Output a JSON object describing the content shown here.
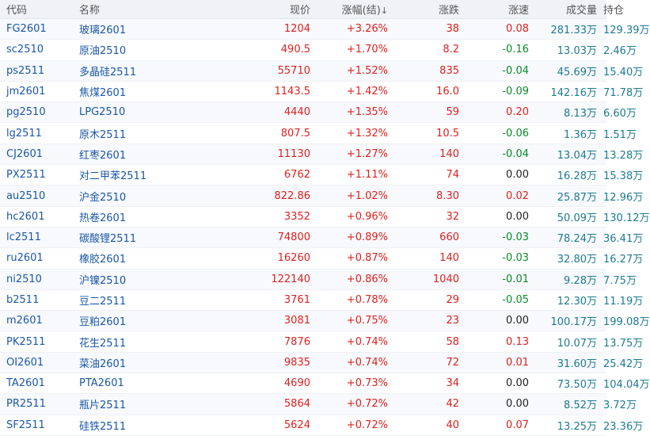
{
  "headers": {
    "code": "代码",
    "name": "名称",
    "price": "现价",
    "change_pct": "涨幅(结)",
    "sort_arrow": "↓",
    "change": "涨跌",
    "speed": "涨速",
    "volume": "成交量",
    "open_interest": "持仓"
  },
  "colors": {
    "up": "#e0201e",
    "down": "#0a8a2a",
    "flat": "#222222",
    "link": "#1a57a8",
    "teal": "#1c7a92"
  },
  "rows": [
    {
      "code": "FG2601",
      "name": "玻璃2601",
      "price": "1204",
      "change_pct": "+3.26%",
      "change": "38",
      "speed": "0.08",
      "volume": "281.33万",
      "open_interest": "129.39万"
    },
    {
      "code": "sc2510",
      "name": "原油2510",
      "price": "490.5",
      "change_pct": "+1.70%",
      "change": "8.2",
      "speed": "-0.16",
      "volume": "13.03万",
      "open_interest": "2.46万"
    },
    {
      "code": "ps2511",
      "name": "多晶硅2511",
      "price": "55710",
      "change_pct": "+1.52%",
      "change": "835",
      "speed": "-0.04",
      "volume": "45.69万",
      "open_interest": "15.40万"
    },
    {
      "code": "jm2601",
      "name": "焦煤2601",
      "price": "1143.5",
      "change_pct": "+1.42%",
      "change": "16.0",
      "speed": "-0.09",
      "volume": "142.16万",
      "open_interest": "71.78万"
    },
    {
      "code": "pg2510",
      "name": "LPG2510",
      "price": "4440",
      "change_pct": "+1.35%",
      "change": "59",
      "speed": "0.20",
      "volume": "8.13万",
      "open_interest": "6.60万"
    },
    {
      "code": "lg2511",
      "name": "原木2511",
      "price": "807.5",
      "change_pct": "+1.32%",
      "change": "10.5",
      "speed": "-0.06",
      "volume": "1.36万",
      "open_interest": "1.51万"
    },
    {
      "code": "CJ2601",
      "name": "红枣2601",
      "price": "11130",
      "change_pct": "+1.27%",
      "change": "140",
      "speed": "-0.04",
      "volume": "13.04万",
      "open_interest": "13.28万"
    },
    {
      "code": "PX2511",
      "name": "对二甲苯2511",
      "price": "6762",
      "change_pct": "+1.11%",
      "change": "74",
      "speed": "0.00",
      "volume": "16.28万",
      "open_interest": "15.38万"
    },
    {
      "code": "au2510",
      "name": "沪金2510",
      "price": "822.86",
      "change_pct": "+1.02%",
      "change": "8.30",
      "speed": "0.02",
      "volume": "25.87万",
      "open_interest": "12.96万"
    },
    {
      "code": "hc2601",
      "name": "热卷2601",
      "price": "3352",
      "change_pct": "+0.96%",
      "change": "32",
      "speed": "0.00",
      "volume": "50.09万",
      "open_interest": "130.12万"
    },
    {
      "code": "lc2511",
      "name": "碳酸锂2511",
      "price": "74800",
      "change_pct": "+0.89%",
      "change": "660",
      "speed": "-0.03",
      "volume": "78.24万",
      "open_interest": "36.41万"
    },
    {
      "code": "ru2601",
      "name": "橡胶2601",
      "price": "16260",
      "change_pct": "+0.87%",
      "change": "140",
      "speed": "-0.03",
      "volume": "32.80万",
      "open_interest": "16.27万"
    },
    {
      "code": "ni2510",
      "name": "沪镍2510",
      "price": "122140",
      "change_pct": "+0.86%",
      "change": "1040",
      "speed": "-0.01",
      "volume": "9.28万",
      "open_interest": "7.75万"
    },
    {
      "code": "b2511",
      "name": "豆二2511",
      "price": "3761",
      "change_pct": "+0.78%",
      "change": "29",
      "speed": "-0.05",
      "volume": "12.30万",
      "open_interest": "11.19万"
    },
    {
      "code": "m2601",
      "name": "豆粕2601",
      "price": "3081",
      "change_pct": "+0.75%",
      "change": "23",
      "speed": "0.00",
      "volume": "100.17万",
      "open_interest": "199.08万"
    },
    {
      "code": "PK2511",
      "name": "花生2511",
      "price": "7876",
      "change_pct": "+0.74%",
      "change": "58",
      "speed": "0.13",
      "volume": "10.07万",
      "open_interest": "13.75万"
    },
    {
      "code": "OI2601",
      "name": "菜油2601",
      "price": "9835",
      "change_pct": "+0.74%",
      "change": "72",
      "speed": "0.01",
      "volume": "31.60万",
      "open_interest": "25.42万"
    },
    {
      "code": "TA2601",
      "name": "PTA2601",
      "price": "4690",
      "change_pct": "+0.73%",
      "change": "34",
      "speed": "0.00",
      "volume": "73.50万",
      "open_interest": "104.04万"
    },
    {
      "code": "PR2511",
      "name": "瓶片2511",
      "price": "5864",
      "change_pct": "+0.72%",
      "change": "42",
      "speed": "0.00",
      "volume": "8.52万",
      "open_interest": "3.72万"
    },
    {
      "code": "SF2511",
      "name": "硅铁2511",
      "price": "5624",
      "change_pct": "+0.72%",
      "change": "40",
      "speed": "0.07",
      "volume": "13.25万",
      "open_interest": "23.36万"
    }
  ]
}
